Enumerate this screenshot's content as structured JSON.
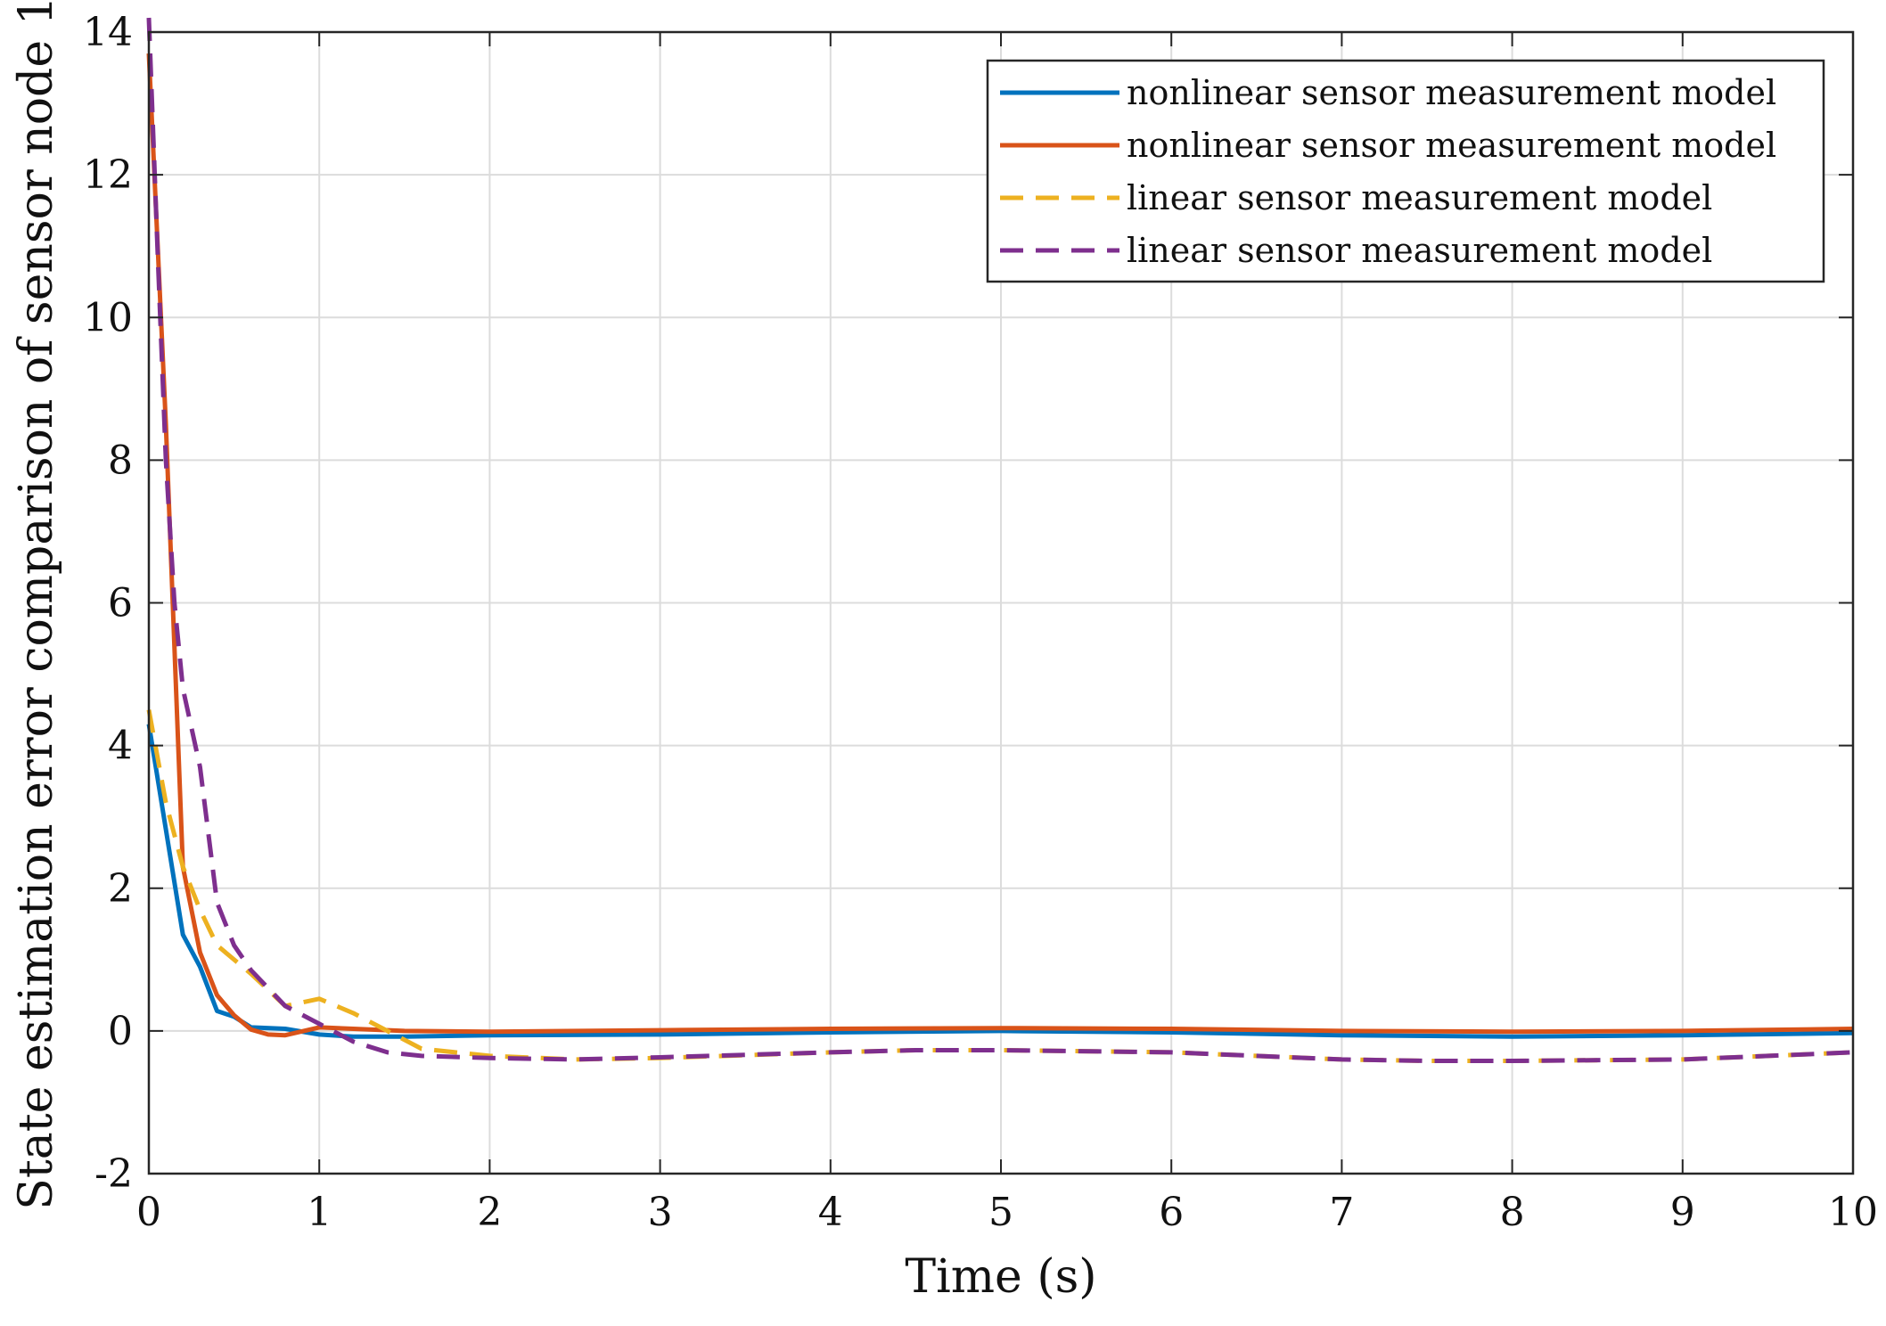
{
  "chart_data": {
    "type": "line",
    "title": "",
    "xlabel": "Time (s)",
    "ylabel": "State estimation error comparison of sensor node 1",
    "xlim": [
      0,
      10
    ],
    "ylim": [
      -2,
      14
    ],
    "xticks": [
      "0",
      "1",
      "2",
      "3",
      "4",
      "5",
      "6",
      "7",
      "8",
      "9",
      "10"
    ],
    "yticks": [
      "-2",
      "0",
      "2",
      "4",
      "6",
      "8",
      "10",
      "12",
      "14"
    ],
    "grid": true,
    "legend_position": "top-right",
    "series": [
      {
        "name": "nonlinear sensor measurement model",
        "color": "#0072BD",
        "style": "solid",
        "x": [
          0,
          0.2,
          0.3,
          0.4,
          0.5,
          0.6,
          0.8,
          1.0,
          1.2,
          1.5,
          2.0,
          3.0,
          4.0,
          5.0,
          6.0,
          7.0,
          8.0,
          9.0,
          10.0
        ],
        "y": [
          4.3,
          1.35,
          0.9,
          0.28,
          0.2,
          0.05,
          0.03,
          -0.05,
          -0.08,
          -0.08,
          -0.06,
          -0.05,
          -0.02,
          0.0,
          -0.02,
          -0.06,
          -0.08,
          -0.06,
          -0.03
        ]
      },
      {
        "name": "nonlinear sensor measurement model",
        "color": "#D95319",
        "style": "solid",
        "x": [
          0,
          0.1,
          0.2,
          0.3,
          0.4,
          0.5,
          0.6,
          0.7,
          0.8,
          1.0,
          1.2,
          1.5,
          2.0,
          3.0,
          4.0,
          5.0,
          6.0,
          7.0,
          8.0,
          9.0,
          10.0
        ],
        "y": [
          13.7,
          8.5,
          2.3,
          1.1,
          0.5,
          0.22,
          0.02,
          -0.05,
          -0.06,
          0.05,
          0.03,
          0.0,
          -0.01,
          0.01,
          0.03,
          0.04,
          0.03,
          0.0,
          -0.01,
          0.0,
          0.03
        ]
      },
      {
        "name": "linear sensor measurement model",
        "color": "#EDB120",
        "style": "dashed",
        "x": [
          0,
          0.1,
          0.2,
          0.3,
          0.4,
          0.6,
          0.8,
          1.0,
          1.2,
          1.4,
          1.6,
          2.0,
          2.5,
          3.0,
          4.0,
          4.5,
          5.0,
          6.0,
          7.0,
          7.5,
          8.0,
          9.0,
          10.0
        ],
        "y": [
          4.5,
          3.2,
          2.3,
          1.7,
          1.2,
          0.8,
          0.35,
          0.45,
          0.25,
          0.0,
          -0.25,
          -0.35,
          -0.4,
          -0.38,
          -0.3,
          -0.27,
          -0.27,
          -0.3,
          -0.4,
          -0.42,
          -0.42,
          -0.4,
          -0.3
        ]
      },
      {
        "name": "linear sensor measurement model",
        "color": "#7E2F8E",
        "style": "dashed",
        "x": [
          0,
          0.05,
          0.1,
          0.15,
          0.2,
          0.3,
          0.4,
          0.5,
          0.6,
          0.8,
          1.0,
          1.2,
          1.4,
          1.6,
          2.0,
          2.5,
          3.0,
          4.0,
          4.5,
          5.0,
          6.0,
          7.0,
          7.5,
          8.0,
          9.0,
          10.0
        ],
        "y": [
          14.2,
          11.0,
          8.0,
          6.0,
          4.8,
          3.7,
          1.8,
          1.2,
          0.85,
          0.35,
          0.1,
          -0.15,
          -0.3,
          -0.35,
          -0.38,
          -0.4,
          -0.37,
          -0.3,
          -0.27,
          -0.27,
          -0.3,
          -0.4,
          -0.42,
          -0.42,
          -0.4,
          -0.3
        ]
      }
    ]
  }
}
